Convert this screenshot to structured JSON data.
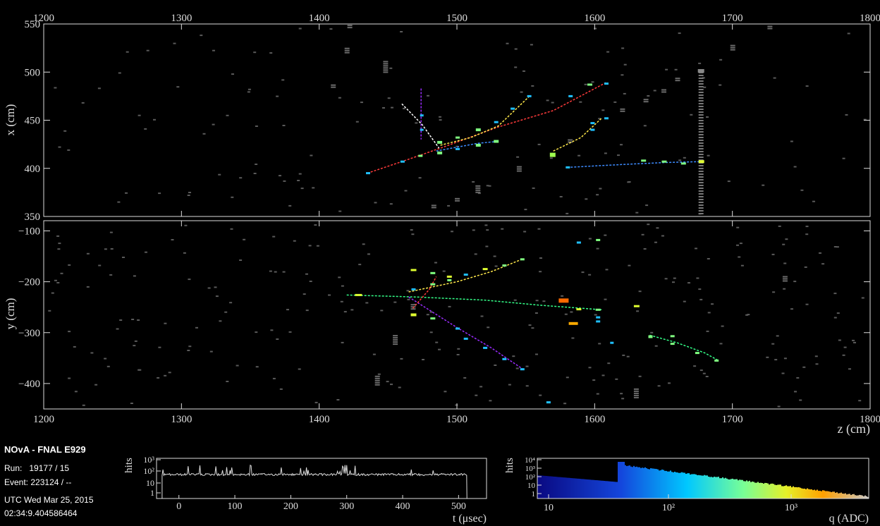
{
  "info": {
    "experiment": "NOvA - FNAL E929",
    "run_label": "Run:",
    "run_value": "19177 / 15",
    "event_label": "Event:",
    "event_value": "223124 / --",
    "date": "UTC Wed Mar 25, 2015",
    "time": "02:34:9.404586464"
  },
  "xz_view": {
    "ylabel": "x (cm)",
    "z_range": [
      1200,
      1800
    ],
    "x_range": [
      350,
      550
    ],
    "z_ticks": [
      "1200",
      "1300",
      "1400",
      "1500",
      "1600",
      "1700",
      "1800"
    ],
    "y_ticks": [
      "350",
      "400",
      "450",
      "500",
      "550"
    ]
  },
  "yz_view": {
    "ylabel": "y (cm)",
    "xlabel": "z (cm)",
    "z_range": [
      1200,
      1800
    ],
    "y_range": [
      -450,
      -80
    ],
    "z_ticks": [
      "1200",
      "1300",
      "1400",
      "1500",
      "1600",
      "1700",
      "1800"
    ],
    "y_ticks": [
      "−100",
      "−200",
      "−300",
      "−400"
    ]
  },
  "time_hist": {
    "xlabel": "t (μsec)",
    "ylabel": "hits",
    "x_ticks": [
      "0",
      "100",
      "200",
      "300",
      "400",
      "500"
    ],
    "y_ticks": [
      "1",
      "10",
      "10²",
      "10³"
    ]
  },
  "charge_hist": {
    "xlabel": "q (ADC)",
    "ylabel": "hits",
    "x_ticks": [
      "10",
      "10²",
      "10³"
    ],
    "y_ticks": [
      "1",
      "10",
      "10²",
      "10³",
      "10⁴"
    ]
  },
  "colors": {
    "background": "#000000",
    "frame": "#dddddd",
    "noise_hit": "#5a5a5a",
    "track_red": "#ff3b3b",
    "track_yellow": "#ffe84a",
    "track_blue": "#3d8bff",
    "track_purple": "#9a2bff",
    "track_green": "#33ff88"
  },
  "tracks_xz": [
    {
      "color": "red",
      "pts": [
        [
          1435,
          395
        ],
        [
          1460,
          407
        ],
        [
          1490,
          422
        ],
        [
          1530,
          443
        ],
        [
          1570,
          460
        ],
        [
          1608,
          489
        ]
      ]
    },
    {
      "color": "yellow",
      "pts": [
        [
          1488,
          424
        ],
        [
          1510,
          432
        ],
        [
          1530,
          444
        ],
        [
          1552,
          474
        ]
      ]
    },
    {
      "color": "yellow",
      "pts": [
        [
          1570,
          418
        ],
        [
          1590,
          432
        ],
        [
          1605,
          452
        ]
      ]
    },
    {
      "color": "blue",
      "pts": [
        [
          1580,
          401
        ],
        [
          1620,
          404
        ],
        [
          1650,
          406
        ],
        [
          1677,
          407
        ]
      ]
    },
    {
      "color": "blue",
      "pts": [
        [
          1485,
          418
        ],
        [
          1515,
          426
        ],
        [
          1530,
          428
        ]
      ]
    },
    {
      "color": "purple",
      "pts": [
        [
          1474,
          483
        ],
        [
          1474,
          440
        ],
        [
          1474,
          430
        ]
      ]
    },
    {
      "color": "white",
      "pts": [
        [
          1460,
          467
        ],
        [
          1475,
          445
        ],
        [
          1487,
          421
        ]
      ]
    }
  ],
  "hits_xz": [
    {
      "z": 1435,
      "v": 395,
      "w": 4,
      "h": 3,
      "c": "#20c0ff"
    },
    {
      "z": 1460,
      "v": 407,
      "w": 4,
      "h": 3,
      "c": "#20c0ff"
    },
    {
      "z": 1473,
      "v": 413,
      "w": 4,
      "h": 3,
      "c": "#80ff80"
    },
    {
      "z": 1487,
      "v": 416,
      "w": 5,
      "h": 4,
      "c": "#80ff80"
    },
    {
      "z": 1487,
      "v": 427,
      "w": 5,
      "h": 4,
      "c": "#80ff80"
    },
    {
      "z": 1500,
      "v": 420,
      "w": 4,
      "h": 3,
      "c": "#20c0ff"
    },
    {
      "z": 1500,
      "v": 432,
      "w": 4,
      "h": 3,
      "c": "#80ff80"
    },
    {
      "z": 1515,
      "v": 424,
      "w": 5,
      "h": 4,
      "c": "#80ff80"
    },
    {
      "z": 1515,
      "v": 440,
      "w": 5,
      "h": 4,
      "c": "#80ff80"
    },
    {
      "z": 1528,
      "v": 428,
      "w": 5,
      "h": 4,
      "c": "#80ff80"
    },
    {
      "z": 1528,
      "v": 448,
      "w": 4,
      "h": 3,
      "c": "#20c0ff"
    },
    {
      "z": 1540,
      "v": 462,
      "w": 4,
      "h": 3,
      "c": "#20c0ff"
    },
    {
      "z": 1552,
      "v": 475,
      "w": 4,
      "h": 3,
      "c": "#20c0ff"
    },
    {
      "z": 1569,
      "v": 414,
      "w": 6,
      "h": 6,
      "c": "#a0ff50"
    },
    {
      "z": 1580,
      "v": 401,
      "w": 4,
      "h": 3,
      "c": "#20c0ff"
    },
    {
      "z": 1582,
      "v": 475,
      "w": 4,
      "h": 3,
      "c": "#20c0ff"
    },
    {
      "z": 1596,
      "v": 487,
      "w": 5,
      "h": 3,
      "c": "#80ff80"
    },
    {
      "z": 1598,
      "v": 440,
      "w": 4,
      "h": 3,
      "c": "#20c0ff"
    },
    {
      "z": 1598,
      "v": 447,
      "w": 4,
      "h": 3,
      "c": "#20c0ff"
    },
    {
      "z": 1608,
      "v": 488,
      "w": 4,
      "h": 3,
      "c": "#20c0ff"
    },
    {
      "z": 1608,
      "v": 452,
      "w": 4,
      "h": 3,
      "c": "#20c0ff"
    },
    {
      "z": 1635,
      "v": 408,
      "w": 5,
      "h": 3,
      "c": "#80ff80"
    },
    {
      "z": 1650,
      "v": 407,
      "w": 5,
      "h": 3,
      "c": "#80ff80"
    },
    {
      "z": 1664,
      "v": 405,
      "w": 5,
      "h": 3,
      "c": "#80ff80"
    },
    {
      "z": 1677,
      "v": 407,
      "w": 6,
      "h": 4,
      "c": "#e0ff30"
    },
    {
      "z": 1474,
      "v": 440,
      "w": 3,
      "h": 3,
      "c": "#20c0ff"
    },
    {
      "z": 1474,
      "v": 455,
      "w": 3,
      "h": 3,
      "c": "#20c0ff"
    }
  ],
  "tracks_yz": [
    {
      "color": "green",
      "pts": [
        [
          1420,
          -226
        ],
        [
          1470,
          -230
        ],
        [
          1520,
          -236
        ],
        [
          1560,
          -246
        ],
        [
          1605,
          -255
        ]
      ]
    },
    {
      "color": "yellow",
      "pts": [
        [
          1465,
          -220
        ],
        [
          1500,
          -200
        ],
        [
          1525,
          -180
        ],
        [
          1548,
          -155
        ]
      ]
    },
    {
      "color": "purple",
      "pts": [
        [
          1465,
          -230
        ],
        [
          1500,
          -290
        ],
        [
          1525,
          -330
        ],
        [
          1548,
          -372
        ]
      ]
    },
    {
      "color": "green",
      "pts": [
        [
          1640,
          -305
        ],
        [
          1660,
          -320
        ],
        [
          1680,
          -340
        ],
        [
          1690,
          -355
        ]
      ]
    },
    {
      "color": "red",
      "pts": [
        [
          1468,
          -252
        ],
        [
          1480,
          -215
        ],
        [
          1485,
          -190
        ]
      ]
    }
  ],
  "hits_yz": [
    {
      "z": 1428,
      "v": -226,
      "w": 8,
      "h": 3,
      "c": "#e0ff30"
    },
    {
      "z": 1468,
      "v": -177,
      "w": 6,
      "h": 3,
      "c": "#e0ff30"
    },
    {
      "z": 1468,
      "v": -265,
      "w": 6,
      "h": 4,
      "c": "#e0ff30"
    },
    {
      "z": 1468,
      "v": -215,
      "w": 4,
      "h": 3,
      "c": "#20c0ff"
    },
    {
      "z": 1482,
      "v": -205,
      "w": 5,
      "h": 3,
      "c": "#80ff80"
    },
    {
      "z": 1482,
      "v": -183,
      "w": 5,
      "h": 3,
      "c": "#80ff80"
    },
    {
      "z": 1482,
      "v": -272,
      "w": 5,
      "h": 3,
      "c": "#80ff80"
    },
    {
      "z": 1494,
      "v": -190,
      "w": 5,
      "h": 3,
      "c": "#e0ff30"
    },
    {
      "z": 1494,
      "v": -197,
      "w": 4,
      "h": 3,
      "c": "#80ff80"
    },
    {
      "z": 1500,
      "v": -292,
      "w": 4,
      "h": 3,
      "c": "#20c0ff"
    },
    {
      "z": 1506,
      "v": -186,
      "w": 4,
      "h": 3,
      "c": "#20c0ff"
    },
    {
      "z": 1506,
      "v": -312,
      "w": 4,
      "h": 3,
      "c": "#20c0ff"
    },
    {
      "z": 1520,
      "v": -175,
      "w": 5,
      "h": 3,
      "c": "#e0ff30"
    },
    {
      "z": 1520,
      "v": -330,
      "w": 4,
      "h": 3,
      "c": "#20c0ff"
    },
    {
      "z": 1534,
      "v": -168,
      "w": 4,
      "h": 3,
      "c": "#80ff80"
    },
    {
      "z": 1534,
      "v": -352,
      "w": 4,
      "h": 3,
      "c": "#20c0ff"
    },
    {
      "z": 1547,
      "v": -156,
      "w": 4,
      "h": 3,
      "c": "#80ff80"
    },
    {
      "z": 1547,
      "v": -372,
      "w": 4,
      "h": 3,
      "c": "#20c0ff"
    },
    {
      "z": 1577,
      "v": -237,
      "w": 12,
      "h": 6,
      "c": "#ff6a00"
    },
    {
      "z": 1584,
      "v": -282,
      "w": 11,
      "h": 4,
      "c": "#ffaa00"
    },
    {
      "z": 1588,
      "v": -254,
      "w": 5,
      "h": 3,
      "c": "#e0ff30"
    },
    {
      "z": 1588,
      "v": -123,
      "w": 4,
      "h": 3,
      "c": "#20c0ff"
    },
    {
      "z": 1602,
      "v": -255,
      "w": 5,
      "h": 3,
      "c": "#80ff80"
    },
    {
      "z": 1602,
      "v": -270,
      "w": 4,
      "h": 3,
      "c": "#20c0ff"
    },
    {
      "z": 1602,
      "v": -278,
      "w": 4,
      "h": 3,
      "c": "#20c0ff"
    },
    {
      "z": 1602,
      "v": -118,
      "w": 4,
      "h": 3,
      "c": "#80ff80"
    },
    {
      "z": 1630,
      "v": -248,
      "w": 6,
      "h": 3,
      "c": "#e0ff30"
    },
    {
      "z": 1640,
      "v": -308,
      "w": 4,
      "h": 4,
      "c": "#80ff80"
    },
    {
      "z": 1656,
      "v": -307,
      "w": 4,
      "h": 3,
      "c": "#80ff80"
    },
    {
      "z": 1656,
      "v": -322,
      "w": 4,
      "h": 3,
      "c": "#80ff80"
    },
    {
      "z": 1674,
      "v": -340,
      "w": 4,
      "h": 3,
      "c": "#80ff80"
    },
    {
      "z": 1688,
      "v": -355,
      "w": 4,
      "h": 3,
      "c": "#80ff80"
    },
    {
      "z": 1612,
      "v": -320,
      "w": 3,
      "h": 3,
      "c": "#20c0ff"
    },
    {
      "z": 1566,
      "v": -437,
      "w": 4,
      "h": 3,
      "c": "#20c0ff"
    }
  ],
  "gray_clusters_xz": [
    {
      "z": 1420,
      "v": 522,
      "n": 3
    },
    {
      "z": 1448,
      "v": 505,
      "n": 6
    },
    {
      "z": 1483,
      "v": 360,
      "n": 2
    },
    {
      "z": 1500,
      "v": 367,
      "n": 2
    },
    {
      "z": 1515,
      "v": 378,
      "n": 4
    },
    {
      "z": 1545,
      "v": 399,
      "n": 3
    },
    {
      "z": 1582,
      "v": 428,
      "n": 2
    },
    {
      "z": 1620,
      "v": 460,
      "n": 2
    },
    {
      "z": 1637,
      "v": 470,
      "n": 2
    },
    {
      "z": 1650,
      "v": 480,
      "n": 2
    },
    {
      "z": 1660,
      "v": 492,
      "n": 2
    },
    {
      "z": 1700,
      "v": 525,
      "n": 3
    },
    {
      "z": 1727,
      "v": 546,
      "n": 2
    },
    {
      "z": 1422,
      "v": 547,
      "n": 2
    },
    {
      "z": 1410,
      "v": 485,
      "n": 2
    }
  ],
  "gray_clusters_yz": [
    {
      "z": 1455,
      "v": -315,
      "n": 5
    },
    {
      "z": 1442,
      "v": -395,
      "n": 5
    },
    {
      "z": 1468,
      "v": -250,
      "n": 3
    },
    {
      "z": 1630,
      "v": -420,
      "n": 5
    },
    {
      "z": 1738,
      "v": -195,
      "n": 3
    }
  ]
}
